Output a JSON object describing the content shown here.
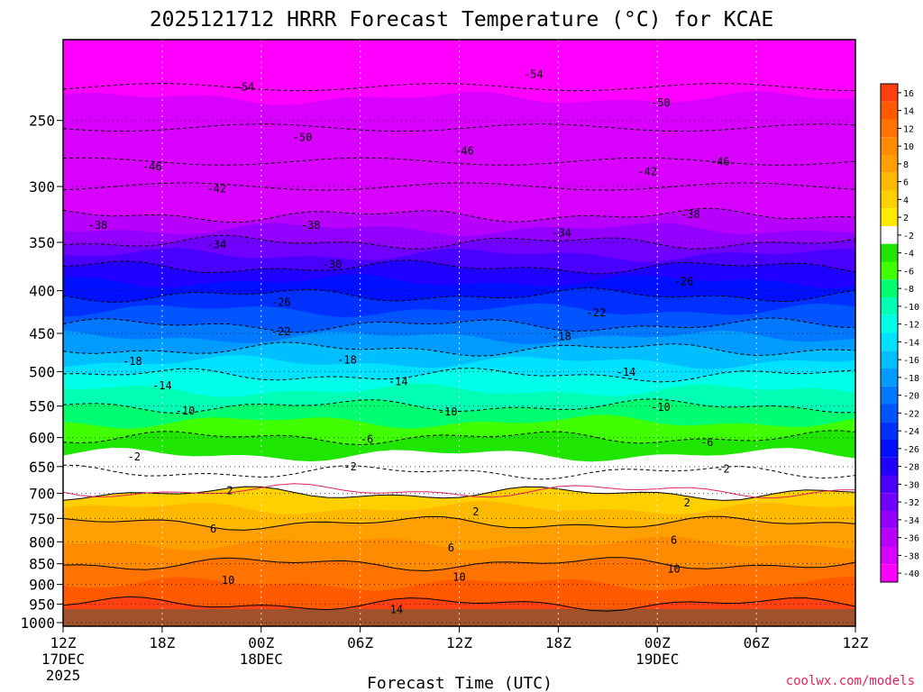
{
  "chart_data": {
    "type": "heatmap",
    "title": "2025121712 HRRR Forecast Temperature (°C) for KCAE",
    "xlabel": "Forecast Time (UTC)",
    "credit": "coolwx.com/models",
    "x_ticks": [
      {
        "label": "12Z",
        "sub": "17DEC",
        "sub2": "2025",
        "hour": 0
      },
      {
        "label": "18Z",
        "sub": "",
        "sub2": "",
        "hour": 6
      },
      {
        "label": "00Z",
        "sub": "18DEC",
        "sub2": "",
        "hour": 12
      },
      {
        "label": "06Z",
        "sub": "",
        "sub2": "",
        "hour": 18
      },
      {
        "label": "12Z",
        "sub": "",
        "sub2": "",
        "hour": 24
      },
      {
        "label": "18Z",
        "sub": "",
        "sub2": "",
        "hour": 30
      },
      {
        "label": "00Z",
        "sub": "19DEC",
        "sub2": "",
        "hour": 36
      },
      {
        "label": "06Z",
        "sub": "",
        "sub2": "",
        "hour": 42
      },
      {
        "label": "12Z",
        "sub": "",
        "sub2": "",
        "hour": 48
      }
    ],
    "xlim": [
      0,
      48
    ],
    "y_ticks": [
      250,
      300,
      350,
      400,
      450,
      500,
      550,
      600,
      650,
      700,
      750,
      800,
      850,
      900,
      950,
      1000
    ],
    "ylim": [
      1010,
      200
    ],
    "y_scale": "log",
    "colorbar_levels": [
      16,
      14,
      12,
      10,
      8,
      6,
      4,
      2,
      -2,
      -4,
      -6,
      -8,
      -10,
      -12,
      -14,
      -16,
      -18,
      -20,
      -22,
      -24,
      -26,
      -28,
      -30,
      -32,
      -34,
      -36,
      -38,
      -40
    ],
    "colorbar_colors": [
      "#ff4010",
      "#ff5a00",
      "#ff7400",
      "#ff8c00",
      "#ffa000",
      "#ffb800",
      "#ffd000",
      "#ffea00",
      "#ffffff",
      "#1ee600",
      "#40ff00",
      "#00ff70",
      "#00ffb4",
      "#00ffe8",
      "#00e0ff",
      "#00bfff",
      "#009bff",
      "#0078ff",
      "#0055ff",
      "#0030ff",
      "#0010ff",
      "#2000ff",
      "#4a00ff",
      "#7000ff",
      "#9400ff",
      "#b800ff",
      "#d800ff",
      "#ff00ff"
    ],
    "isotherm_labels": [
      {
        "label": "-54",
        "hour": 11,
        "p": 228
      },
      {
        "label": "-54",
        "hour": 28.5,
        "p": 220
      },
      {
        "label": "-50",
        "hour": 14.5,
        "p": 262
      },
      {
        "label": "-50",
        "hour": 36.2,
        "p": 238
      },
      {
        "label": "-46",
        "hour": 5.4,
        "p": 284
      },
      {
        "label": "-46",
        "hour": 24.3,
        "p": 272
      },
      {
        "label": "-46",
        "hour": 39.8,
        "p": 280
      },
      {
        "label": "-42",
        "hour": 9.3,
        "p": 302
      },
      {
        "label": "-42",
        "hour": 35.4,
        "p": 288
      },
      {
        "label": "-38",
        "hour": 2.1,
        "p": 334
      },
      {
        "label": "-38",
        "hour": 15.0,
        "p": 334
      },
      {
        "label": "-38",
        "hour": 38.0,
        "p": 324
      },
      {
        "label": "-34",
        "hour": 9.3,
        "p": 352
      },
      {
        "label": "-34",
        "hour": 30.2,
        "p": 341
      },
      {
        "label": "-30",
        "hour": 16.3,
        "p": 372
      },
      {
        "label": "-26",
        "hour": 13.2,
        "p": 413
      },
      {
        "label": "-26",
        "hour": 37.6,
        "p": 390
      },
      {
        "label": "-22",
        "hour": 13.2,
        "p": 448
      },
      {
        "label": "-22",
        "hour": 32.3,
        "p": 425
      },
      {
        "label": "-18",
        "hour": 4.2,
        "p": 486
      },
      {
        "label": "-18",
        "hour": 17.2,
        "p": 484
      },
      {
        "label": "-18",
        "hour": 30.2,
        "p": 454
      },
      {
        "label": "-14",
        "hour": 6.0,
        "p": 520
      },
      {
        "label": "-14",
        "hour": 20.3,
        "p": 514
      },
      {
        "label": "-14",
        "hour": 34.1,
        "p": 501
      },
      {
        "label": "-10",
        "hour": 7.4,
        "p": 557
      },
      {
        "label": "-10",
        "hour": 23.3,
        "p": 559
      },
      {
        "label": "-10",
        "hour": 36.2,
        "p": 552
      },
      {
        "label": "-6",
        "hour": 18.4,
        "p": 603
      },
      {
        "label": "-6",
        "hour": 39.0,
        "p": 608
      },
      {
        "label": "-2",
        "hour": 4.3,
        "p": 633
      },
      {
        "label": "-2",
        "hour": 17.4,
        "p": 650
      },
      {
        "label": "-2",
        "hour": 40.0,
        "p": 654
      },
      {
        "label": "2",
        "hour": 10.1,
        "p": 695
      },
      {
        "label": "2",
        "hour": 25.0,
        "p": 736
      },
      {
        "label": "2",
        "hour": 37.8,
        "p": 718
      },
      {
        "label": "6",
        "hour": 9.1,
        "p": 772
      },
      {
        "label": "6",
        "hour": 23.5,
        "p": 813
      },
      {
        "label": "6",
        "hour": 37.0,
        "p": 796
      },
      {
        "label": "10",
        "hour": 10.0,
        "p": 890
      },
      {
        "label": "10",
        "hour": 24.0,
        "p": 882
      },
      {
        "label": "10",
        "hour": 37.0,
        "p": 862
      },
      {
        "label": "14",
        "hour": 20.2,
        "p": 965
      }
    ]
  }
}
